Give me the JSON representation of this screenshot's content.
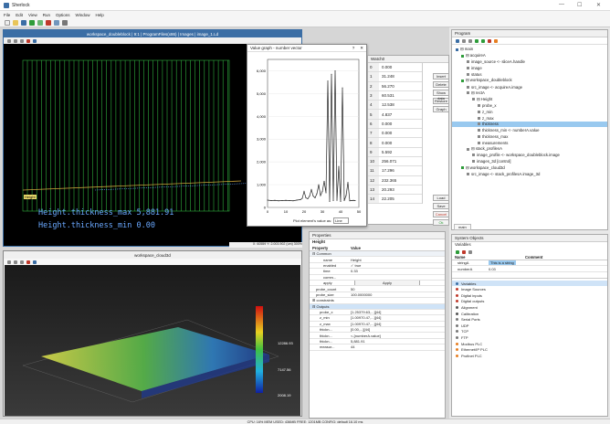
{
  "app": {
    "title": "Sherlock",
    "window_controls": [
      "—",
      "☐",
      "✕"
    ]
  },
  "menu": [
    "File",
    "Edit",
    "View",
    "Run",
    "Options",
    "Window",
    "Help"
  ],
  "toolbar_icons": [
    "new-icon",
    "open-icon",
    "save-icon",
    "run-icon",
    "step-icon",
    "stop-icon",
    "pause-icon",
    "settings-icon"
  ],
  "image_window": {
    "title": "workspace_doubleblock | 9:1 | ProgramFiles(x86) | Images | image_1.Ld",
    "badge": "Height",
    "overlay_max": "Height.thickness_max 5,881.91",
    "overlay_min": "Height.thickness_min 0.00",
    "status": "X: 60559 Y: 2.003.902 (um) 300% "
  },
  "graph": {
    "title": "Value graph - number vector",
    "y_ticks": [
      "6,000",
      "5,000",
      "4,000",
      "3,000",
      "2,000",
      "1,000",
      "0"
    ],
    "x_ticks": [
      "0",
      "10",
      "20",
      "30",
      "40",
      "50"
    ],
    "footer_label": "Plot element's value as:",
    "footer_value": "Line"
  },
  "chart_data": {
    "type": "line",
    "title": "",
    "xlabel": "",
    "ylabel": "",
    "xlim": [
      0,
      50
    ],
    "ylim": [
      0,
      6500
    ],
    "x": [
      0,
      2,
      4,
      6,
      8,
      10,
      12,
      14,
      16,
      18,
      19,
      20,
      21,
      22,
      23,
      24,
      25,
      26,
      27,
      28,
      29,
      30,
      31,
      32,
      33,
      34,
      35,
      36,
      37,
      38,
      39,
      40,
      41,
      42,
      43,
      44,
      45,
      46,
      47,
      48
    ],
    "values": [
      320,
      300,
      310,
      290,
      300,
      310,
      300,
      290,
      320,
      340,
      400,
      700,
      420,
      380,
      500,
      780,
      500,
      420,
      600,
      1000,
      520,
      700,
      1150,
      640,
      5550,
      260,
      5850,
      300,
      6000,
      310,
      1800,
      260,
      5250,
      300,
      520,
      1100,
      290,
      300,
      310,
      300
    ]
  },
  "watch": {
    "title": "Watch0",
    "rows": [
      {
        "i": "0",
        "v": "0.000"
      },
      {
        "i": "1",
        "v": "31.248"
      },
      {
        "i": "2",
        "v": "56.270"
      },
      {
        "i": "3",
        "v": "60.531"
      },
      {
        "i": "4",
        "v": "12.538"
      },
      {
        "i": "5",
        "v": "4.837"
      },
      {
        "i": "6",
        "v": "0.000"
      },
      {
        "i": "7",
        "v": "0.000"
      },
      {
        "i": "8",
        "v": "0.000"
      },
      {
        "i": "9",
        "v": "5.592"
      },
      {
        "i": "10",
        "v": "256.071"
      },
      {
        "i": "11",
        "v": "17.296"
      },
      {
        "i": "12",
        "v": "232.365"
      },
      {
        "i": "13",
        "v": "20.293"
      },
      {
        "i": "14",
        "v": "22.205"
      }
    ],
    "buttons": [
      "Insert",
      "Delete",
      "Show data",
      "Restore",
      "Graph"
    ],
    "bottom_buttons": [
      "Load",
      "Save",
      "Cancel",
      "Ok"
    ]
  },
  "program": {
    "title": "Program",
    "tree": [
      {
        "d": 0,
        "t": "⊟ main"
      },
      {
        "d": 1,
        "t": "⊟ acquireA"
      },
      {
        "d": 2,
        "t": "image_source <- sliceA.handle"
      },
      {
        "d": 2,
        "t": "image"
      },
      {
        "d": 2,
        "t": "status"
      },
      {
        "d": 1,
        "t": "⊟ workspace_doubleblock"
      },
      {
        "d": 2,
        "t": "src_image <- acquireA.image"
      },
      {
        "d": 2,
        "t": "⊟ rectA"
      },
      {
        "d": 3,
        "t": "⊟ Height"
      },
      {
        "d": 4,
        "t": "probe_x"
      },
      {
        "d": 4,
        "t": "z_min"
      },
      {
        "d": 4,
        "t": "z_max"
      },
      {
        "d": 4,
        "t": "thickness",
        "sel": true
      },
      {
        "d": 4,
        "t": "thickness_min <- numberA.value"
      },
      {
        "d": 4,
        "t": "thickness_max"
      },
      {
        "d": 4,
        "t": "measurements"
      },
      {
        "d": 2,
        "t": "⊟ stack_profilesA"
      },
      {
        "d": 3,
        "t": "image_profile <- workspace_doubleblock.image"
      },
      {
        "d": 3,
        "t": "images_3d [control]"
      },
      {
        "d": 1,
        "t": "⊟ workspace_cloud3d"
      },
      {
        "d": 2,
        "t": "src_image <- stack_profilesA.image_3d"
      }
    ],
    "tab": "main"
  },
  "cloud_window": {
    "title": "workspace_cloud3d",
    "colorbar_labels": [
      "12286.93",
      "7147.56",
      "2008.19"
    ]
  },
  "properties": {
    "title": "Properties",
    "subtitle": "Height",
    "col_property": "Property",
    "col_value": "Value",
    "rows": [
      {
        "k": "⊟ Common",
        "v": "",
        "ind": 0,
        "hdr": true
      },
      {
        "k": "name",
        "v": "Height",
        "ind": 3
      },
      {
        "k": "enabled",
        "v": "✓ true",
        "ind": 3
      },
      {
        "k": "time",
        "v": "0.33",
        "ind": 3
      },
      {
        "k": "comm...",
        "v": "",
        "ind": 3
      },
      {
        "k": "apply",
        "v": "Apply",
        "ind": 3,
        "btn": true
      },
      {
        "k": "probe_count",
        "v": "50",
        "ind": 1
      },
      {
        "k": "probe_size",
        "v": "100.0000000",
        "ind": 1
      },
      {
        "k": "⊞ constraints",
        "v": "",
        "ind": 0
      },
      {
        "k": "⊟ Outputs",
        "v": "",
        "ind": 0,
        "hdr": true,
        "blue": true
      },
      {
        "k": "probe_x",
        "v": "[1.25379.63,...][44]",
        "ind": 2
      },
      {
        "k": "z_min",
        "v": "[1.00970.47,...][44]",
        "ind": 2
      },
      {
        "k": "z_max",
        "v": "[1.00970.47,...][44]",
        "ind": 2
      },
      {
        "k": "thickn...",
        "v": "[0.00,...][44]",
        "ind": 2
      },
      {
        "k": "thickn...",
        "v": "<-[numberA.value]",
        "ind": 2
      },
      {
        "k": "thickn...",
        "v": "5,881.91",
        "ind": 2
      },
      {
        "k": "measur...",
        "v": "44",
        "ind": 2
      }
    ]
  },
  "system": {
    "title": "System Objects",
    "vars_title": "Variables",
    "col_name": "Name",
    "col_comment": "Comment",
    "vars": [
      {
        "n": "stringA",
        "v": "This is a string"
      },
      {
        "n": "numberA",
        "v": "0.03"
      }
    ],
    "list": [
      {
        "t": "Variables",
        "c": "#3b6ea5",
        "sel": true
      },
      {
        "t": "Image Sources",
        "c": "#c0392b"
      },
      {
        "t": "Digital inputs",
        "c": "#c0392b"
      },
      {
        "t": "Digital outputs",
        "c": "#c0392b"
      },
      {
        "t": "Alignment",
        "c": "#555"
      },
      {
        "t": "Calibration",
        "c": "#555"
      },
      {
        "t": "Serial Ports",
        "c": "#777"
      },
      {
        "t": "UDP",
        "c": "#777"
      },
      {
        "t": "TCP",
        "c": "#777"
      },
      {
        "t": "FTP",
        "c": "#777"
      },
      {
        "t": "Modbus PLC",
        "c": "#e67e22"
      },
      {
        "t": "Ethernet/IP PLC",
        "c": "#e67e22"
      },
      {
        "t": "Profinet PLC",
        "c": "#e67e22"
      }
    ]
  },
  "statusbar": {
    "text": "CPU: 16% MEM USED: 436MB FREE: 1201MB CONFIG: default 16.10 ms"
  },
  "colors": {
    "accent": "#3b6ea5",
    "selection": "#99c9ef",
    "overlay_text": "#6aa8ff",
    "grid_green": "#2fae3e"
  }
}
